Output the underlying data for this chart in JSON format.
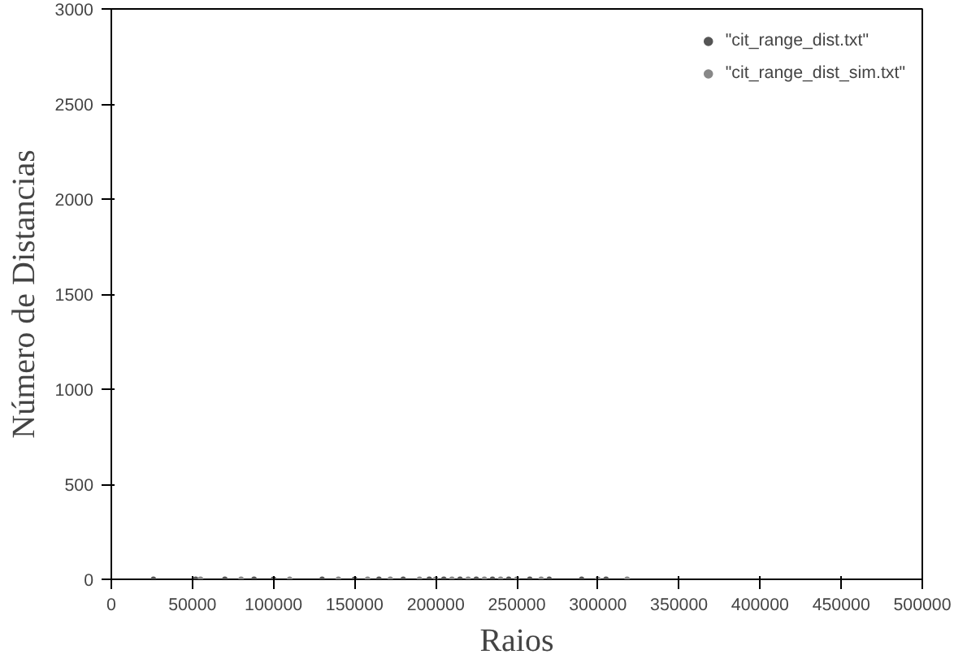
{
  "chart_data": {
    "type": "scatter",
    "xlabel": "Raios",
    "ylabel": "Número de Distancias",
    "xlim": [
      0,
      500000
    ],
    "ylim": [
      0,
      3000
    ],
    "xticks": [
      0,
      50000,
      100000,
      150000,
      200000,
      250000,
      300000,
      350000,
      400000,
      450000,
      500000
    ],
    "yticks": [
      0,
      500,
      1000,
      1500,
      2000,
      2500,
      3000
    ],
    "grid": false,
    "legend": "top right",
    "marker": "circle",
    "series": [
      {
        "name": "\"cit_range_dist.txt\"",
        "color": "#555555",
        "x": [
          26000,
          52000,
          70000,
          88000,
          100000,
          130000,
          150000,
          165000,
          180000,
          196000,
          205000,
          215000,
          225000,
          235000,
          245000,
          258000,
          270000,
          290000,
          305000
        ],
        "values": [
          0,
          0,
          0,
          0,
          0,
          0,
          0,
          0,
          0,
          0,
          0,
          0,
          0,
          0,
          0,
          0,
          0,
          0,
          0
        ]
      },
      {
        "name": "\"cit_range_dist_sim.txt\"",
        "color": "#888888",
        "x": [
          55000,
          80000,
          110000,
          140000,
          158000,
          172000,
          190000,
          200000,
          210000,
          220000,
          230000,
          240000,
          250000,
          265000,
          300000,
          318000
        ],
        "values": [
          0,
          0,
          0,
          0,
          0,
          0,
          0,
          0,
          0,
          0,
          0,
          0,
          0,
          0,
          0,
          0
        ]
      }
    ]
  }
}
